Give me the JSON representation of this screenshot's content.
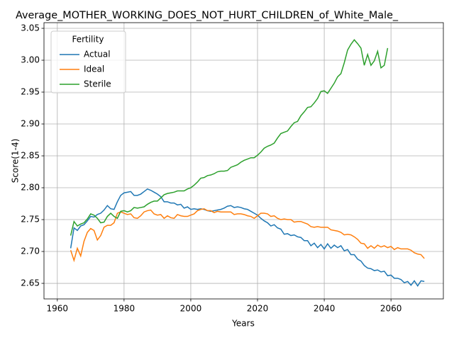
{
  "chart_data": {
    "type": "line",
    "title": "Average_MOTHER_WORKING_DOES_NOT_HURT_CHILDREN_of_White_Male_",
    "xlabel": "Years",
    "ylabel": "Score(1-4)",
    "legend_title": "Fertility",
    "legend": "upper left",
    "grid": true,
    "xlim": [
      1956,
      2075.7
    ],
    "ylim": [
      2.6256,
      3.0589
    ],
    "xticks": [
      1960,
      1980,
      2000,
      2020,
      2040,
      2060
    ],
    "yticks": [
      2.65,
      {
        "value": 2.7,
        "label": "2.70"
      },
      2.75,
      {
        "value": 2.8,
        "label": "2.80"
      },
      2.85,
      {
        "value": 2.9,
        "label": "2.90"
      },
      2.95,
      {
        "value": 3.0,
        "label": "3.00"
      },
      3.05
    ],
    "x": [
      1964,
      1965,
      1966,
      1967,
      1968,
      1969,
      1970,
      1971,
      1972,
      1973,
      1974,
      1975,
      1976,
      1977,
      1978,
      1979,
      1980,
      1981,
      1982,
      1983,
      1984,
      1985,
      1986,
      1987,
      1988,
      1989,
      1990,
      1991,
      1992,
      1993,
      1994,
      1995,
      1996,
      1997,
      1998,
      1999,
      2000,
      2001,
      2002,
      2003,
      2004,
      2005,
      2006,
      2007,
      2008,
      2009,
      2010,
      2011,
      2012,
      2013,
      2014,
      2015,
      2016,
      2017,
      2018,
      2019,
      2020,
      2021,
      2022,
      2023,
      2024,
      2025,
      2026,
      2027,
      2028,
      2029,
      2030,
      2031,
      2032,
      2033,
      2034,
      2035,
      2036,
      2037,
      2038,
      2039,
      2040,
      2041,
      2042,
      2043,
      2044,
      2045,
      2046,
      2047,
      2048,
      2049,
      2050,
      2051,
      2052,
      2053,
      2054,
      2055,
      2056,
      2057,
      2058,
      2059,
      2060,
      2061,
      2062,
      2063,
      2064,
      2065,
      2066,
      2067,
      2068,
      2069,
      2070
    ],
    "series": [
      {
        "name": "Actual",
        "color": "#1f77b4",
        "values": [
          2.705,
          2.737,
          2.733,
          2.74,
          2.742,
          2.748,
          2.755,
          2.754,
          2.758,
          2.76,
          2.765,
          2.772,
          2.767,
          2.766,
          2.778,
          2.788,
          2.792,
          2.793,
          2.794,
          2.788,
          2.788,
          2.79,
          2.794,
          2.798,
          2.796,
          2.793,
          2.79,
          2.786,
          2.778,
          2.778,
          2.776,
          2.776,
          2.773,
          2.774,
          2.768,
          2.77,
          2.766,
          2.767,
          2.766,
          2.767,
          2.766,
          2.764,
          2.763,
          2.764,
          2.765,
          2.766,
          2.768,
          2.771,
          2.772,
          2.769,
          2.77,
          2.769,
          2.767,
          2.766,
          2.763,
          2.76,
          2.757,
          2.752,
          2.748,
          2.745,
          2.74,
          2.742,
          2.737,
          2.735,
          2.727,
          2.728,
          2.725,
          2.726,
          2.723,
          2.722,
          2.717,
          2.717,
          2.709,
          2.713,
          2.706,
          2.711,
          2.704,
          2.712,
          2.705,
          2.71,
          2.706,
          2.709,
          2.701,
          2.703,
          2.695,
          2.695,
          2.688,
          2.685,
          2.678,
          2.674,
          2.673,
          2.67,
          2.671,
          2.668,
          2.669,
          2.662,
          2.663,
          2.658,
          2.658,
          2.656,
          2.651,
          2.653,
          2.647,
          2.654,
          2.646,
          2.654,
          2.653
        ]
      },
      {
        "name": "Ideal",
        "color": "#ff7f0e",
        "values": [
          2.702,
          2.686,
          2.705,
          2.693,
          2.716,
          2.73,
          2.736,
          2.733,
          2.718,
          2.725,
          2.738,
          2.741,
          2.741,
          2.745,
          2.76,
          2.762,
          2.76,
          2.758,
          2.759,
          2.753,
          2.752,
          2.756,
          2.762,
          2.764,
          2.765,
          2.759,
          2.757,
          2.758,
          2.752,
          2.756,
          2.753,
          2.752,
          2.758,
          2.756,
          2.755,
          2.755,
          2.757,
          2.759,
          2.764,
          2.766,
          2.767,
          2.764,
          2.764,
          2.761,
          2.763,
          2.762,
          2.762,
          2.762,
          2.762,
          2.758,
          2.759,
          2.759,
          2.758,
          2.756,
          2.755,
          2.752,
          2.756,
          2.76,
          2.76,
          2.759,
          2.755,
          2.756,
          2.752,
          2.75,
          2.751,
          2.75,
          2.75,
          2.746,
          2.747,
          2.747,
          2.745,
          2.743,
          2.739,
          2.738,
          2.739,
          2.738,
          2.738,
          2.738,
          2.734,
          2.733,
          2.732,
          2.73,
          2.726,
          2.727,
          2.726,
          2.723,
          2.719,
          2.713,
          2.712,
          2.705,
          2.709,
          2.705,
          2.71,
          2.707,
          2.709,
          2.706,
          2.708,
          2.703,
          2.706,
          2.704,
          2.704,
          2.704,
          2.702,
          2.698,
          2.696,
          2.695,
          2.689
        ]
      },
      {
        "name": "Sterile",
        "color": "#2ca02c",
        "values": [
          2.725,
          2.747,
          2.74,
          2.743,
          2.745,
          2.751,
          2.759,
          2.757,
          2.752,
          2.745,
          2.746,
          2.755,
          2.76,
          2.755,
          2.752,
          2.763,
          2.764,
          2.762,
          2.764,
          2.769,
          2.768,
          2.769,
          2.77,
          2.774,
          2.777,
          2.779,
          2.779,
          2.784,
          2.789,
          2.791,
          2.792,
          2.793,
          2.795,
          2.795,
          2.795,
          2.798,
          2.8,
          2.804,
          2.809,
          2.815,
          2.816,
          2.819,
          2.82,
          2.822,
          2.825,
          2.826,
          2.826,
          2.827,
          2.832,
          2.834,
          2.836,
          2.84,
          2.843,
          2.845,
          2.847,
          2.847,
          2.851,
          2.856,
          2.862,
          2.865,
          2.867,
          2.87,
          2.878,
          2.885,
          2.887,
          2.889,
          2.896,
          2.902,
          2.904,
          2.913,
          2.919,
          2.926,
          2.927,
          2.933,
          2.94,
          2.951,
          2.952,
          2.948,
          2.956,
          2.964,
          2.974,
          2.979,
          2.996,
          3.016,
          3.025,
          3.032,
          3.026,
          3.019,
          2.992,
          3.009,
          2.992,
          2.999,
          3.014,
          2.988,
          2.992,
          3.019,
          null,
          null,
          null,
          null,
          null,
          null,
          null,
          null,
          null,
          null,
          null
        ]
      }
    ]
  }
}
